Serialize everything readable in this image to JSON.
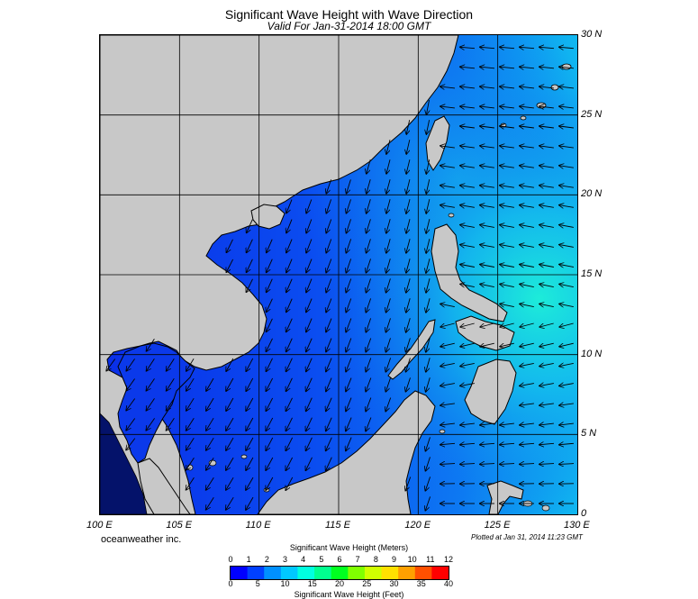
{
  "title": "Significant Wave Height with Wave Direction",
  "subtitle": "Valid For Jan-31-2014 18:00 GMT",
  "credit": "oceanweather inc.",
  "plotted_note": "Plotted at Jan 31, 2014 11:23 GMT",
  "map": {
    "lon_labels": [
      "100 E",
      "105 E",
      "110 E",
      "115 E",
      "120 E",
      "125 E",
      "130 E"
    ],
    "lat_labels": [
      "30 N",
      "25 N",
      "20 N",
      "15 N",
      "10 N",
      "5 N",
      "0"
    ],
    "lon_range": [
      100,
      130
    ],
    "lat_range": [
      0,
      30
    ],
    "colors": {
      "land": "#c8c8c8",
      "coast": "#000000",
      "arrow": "#000000"
    }
  },
  "legend": {
    "meters_title": "Significant Wave Height (Meters)",
    "feet_title": "Significant Wave Height (Feet)",
    "meters_ticks": [
      "0",
      "1",
      "2",
      "3",
      "4",
      "5",
      "6",
      "7",
      "8",
      "9",
      "10",
      "11",
      "12"
    ],
    "feet_ticks": [
      "0",
      "5",
      "10",
      "15",
      "20",
      "25",
      "30",
      "35",
      "40"
    ],
    "colors": [
      "#0000ff",
      "#0040ff",
      "#0090ff",
      "#00c8ff",
      "#00ffe0",
      "#00ff90",
      "#00ff20",
      "#80ff00",
      "#d0ff00",
      "#ffe000",
      "#ffa000",
      "#ff5000",
      "#ff0000"
    ]
  }
}
